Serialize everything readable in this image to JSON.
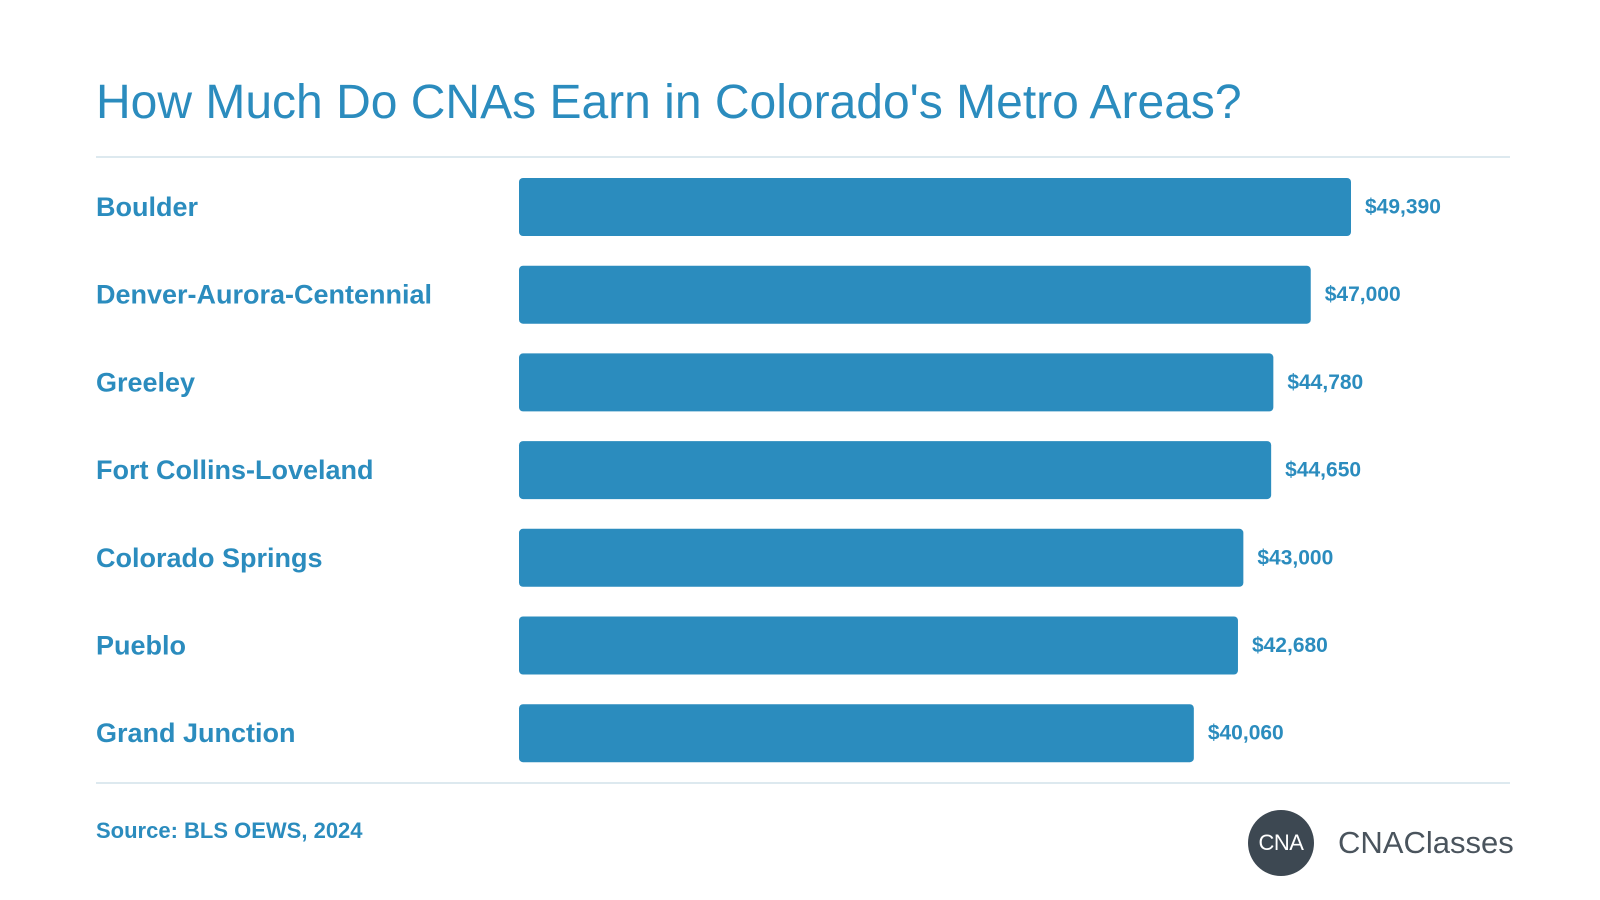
{
  "title": "How Much Do CNAs Earn in Colorado's Metro Areas?",
  "source": "Source: BLS OEWS, 2024",
  "brand": {
    "badge_text": "CNA",
    "name": "CNAClasses"
  },
  "colors": {
    "bar": "#2b8cbe",
    "text": "#2b8cbe",
    "rule": "#dde9ef",
    "badge": "#3d4852",
    "brand_text": "#4a545d"
  },
  "chart_data": {
    "type": "bar",
    "orientation": "horizontal",
    "categories": [
      "Boulder",
      "Denver-Aurora-Centennial",
      "Greeley",
      "Fort Collins-Loveland",
      "Colorado Springs",
      "Pueblo",
      "Grand Junction"
    ],
    "values": [
      49390,
      47000,
      44780,
      44650,
      43000,
      42680,
      40060
    ],
    "value_labels": [
      "$49,390",
      "$47,000",
      "$44,780",
      "$44,650",
      "$43,000",
      "$42,680",
      "$40,060"
    ],
    "title": "How Much Do CNAs Earn in Colorado's Metro Areas?",
    "xlabel": "",
    "ylabel": "",
    "xlim": [
      0,
      49390
    ],
    "grid": false,
    "legend": "none"
  }
}
